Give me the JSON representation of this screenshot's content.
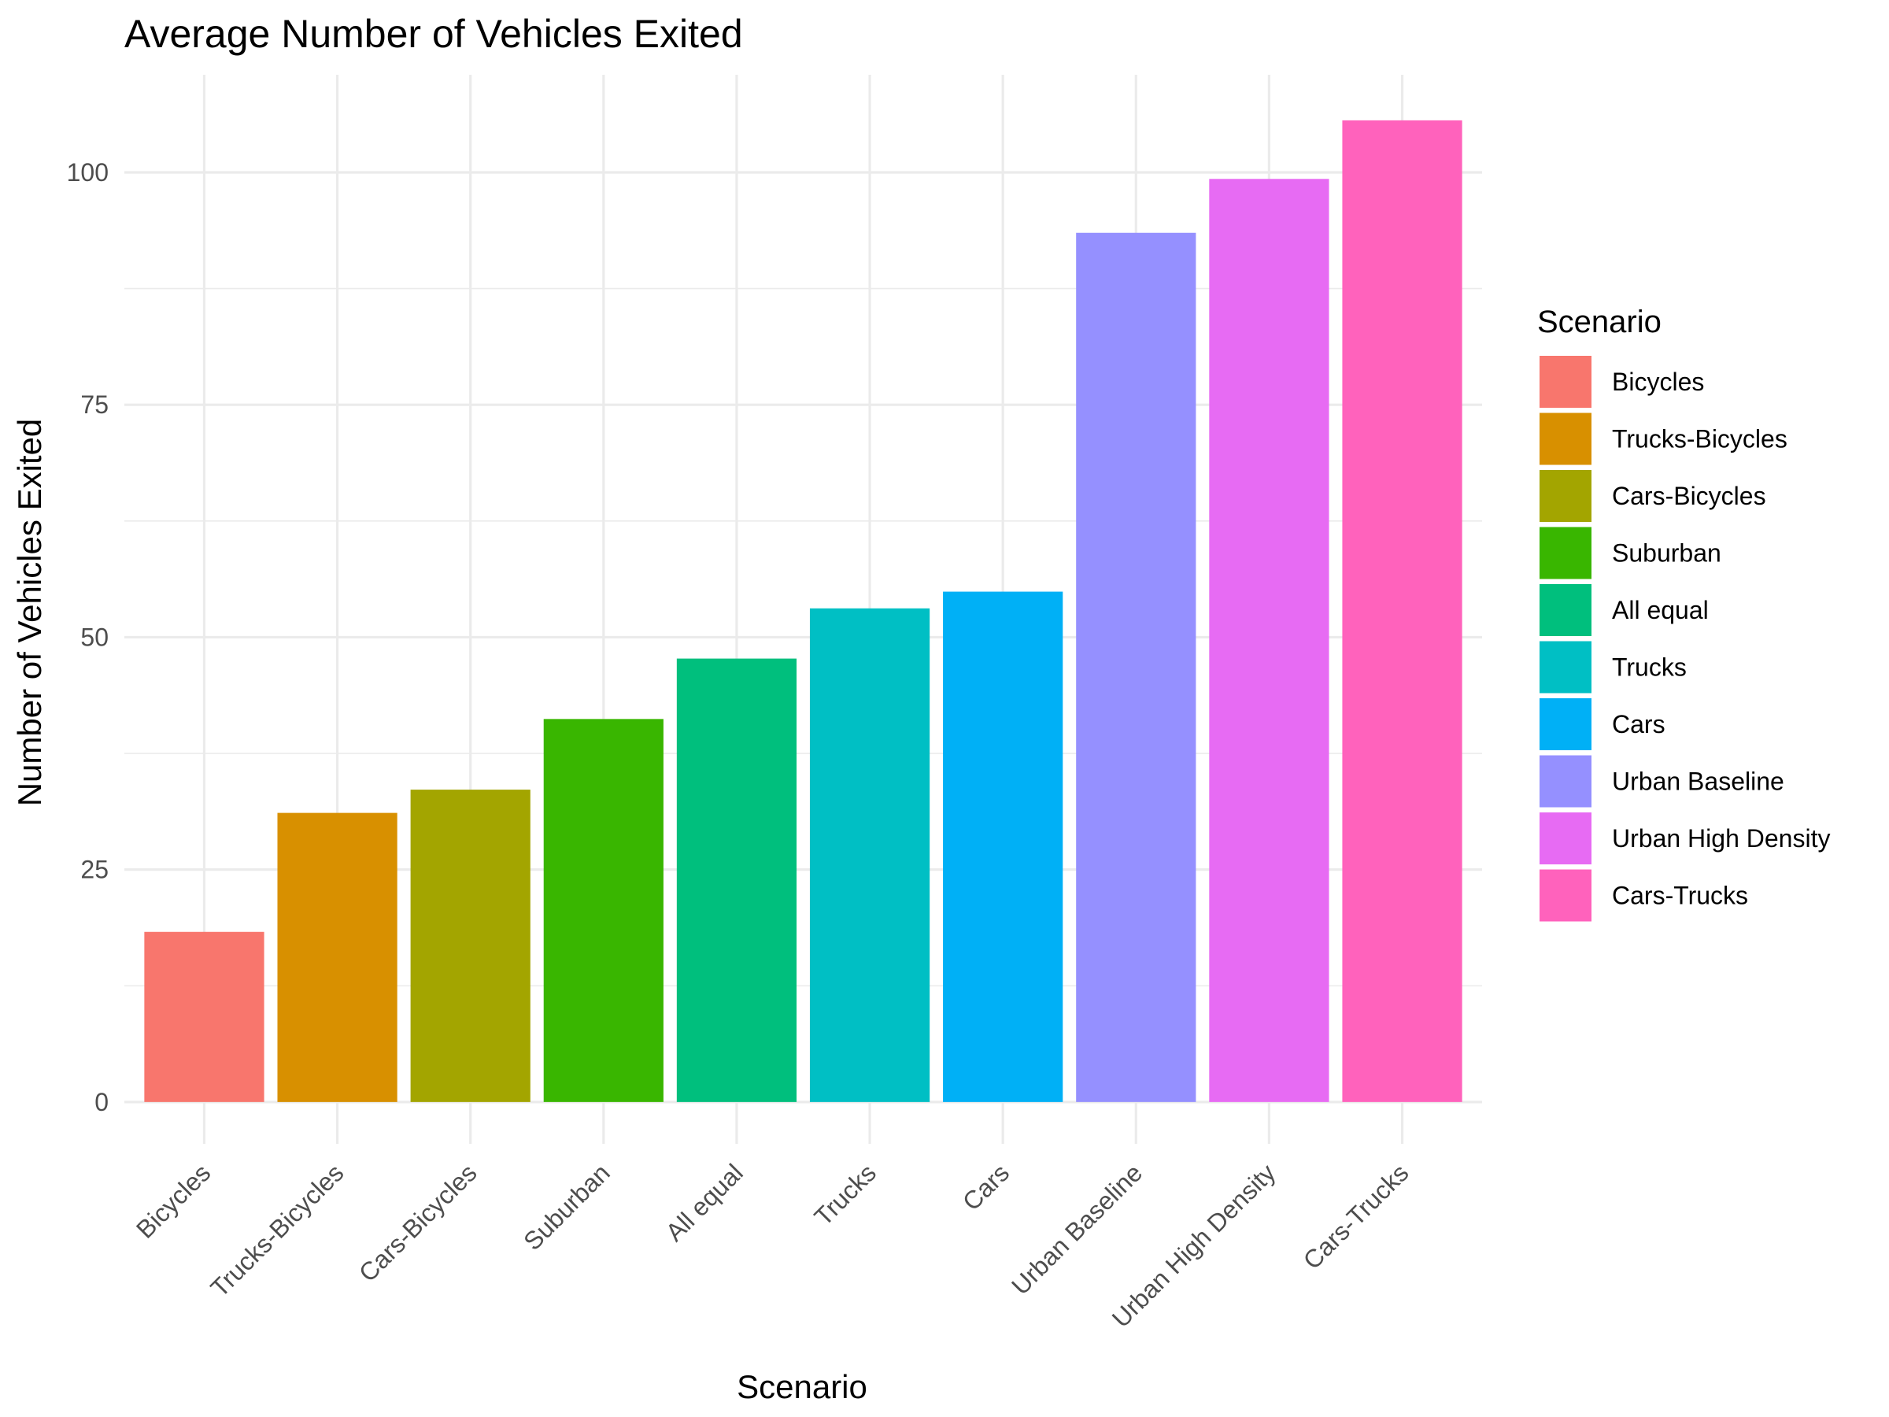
{
  "chart_data": {
    "type": "bar",
    "title": "Average Number of Vehicles Exited",
    "xlabel": "Scenario",
    "ylabel": "Number of Vehicles Exited",
    "categories": [
      "Bicycles",
      "Trucks-Bicycles",
      "Cars-Bicycles",
      "Suburban",
      "All equal",
      "Trucks",
      "Cars",
      "Urban Baseline",
      "Urban High Density",
      "Cars-Trucks"
    ],
    "values": [
      18.3,
      31.1,
      33.6,
      41.2,
      47.7,
      53.1,
      54.9,
      93.5,
      99.3,
      105.6
    ],
    "colors": [
      "#F8766D",
      "#D89000",
      "#A3A500",
      "#39B600",
      "#00BF7D",
      "#00BFC4",
      "#00B0F6",
      "#9590FF",
      "#E76BF3",
      "#FF62BC"
    ],
    "ylim": [
      -4.5,
      110.5
    ],
    "yticks": [
      0,
      25,
      50,
      75,
      100
    ],
    "grid": true,
    "legend": {
      "title": "Scenario",
      "position": "right",
      "entries": [
        "Bicycles",
        "Trucks-Bicycles",
        "Cars-Bicycles",
        "Suburban",
        "All equal",
        "Trucks",
        "Cars",
        "Urban Baseline",
        "Urban High Density",
        "Cars-Trucks"
      ]
    }
  }
}
